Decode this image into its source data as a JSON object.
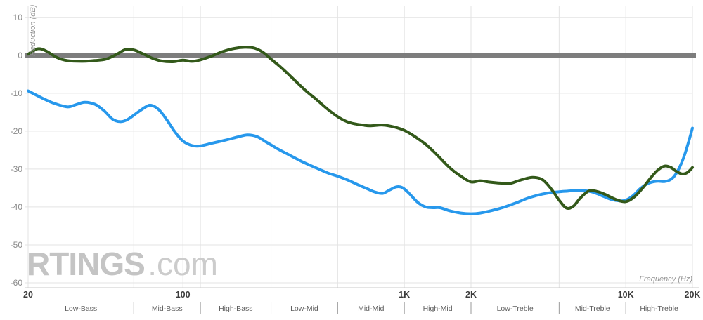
{
  "watermark": {
    "brand": "RTINGS",
    "suffix": ".com"
  },
  "chart_data": {
    "type": "line",
    "x_scale": "log",
    "title": "",
    "xlabel": "Frequency (Hz)",
    "ylabel": "Reduction (dB)",
    "xlim": [
      20,
      20000
    ],
    "ylim": [
      -61.3,
      13.1
    ],
    "grid": true,
    "legend": "none",
    "x_ticks": [
      {
        "value": 20,
        "label": "20"
      },
      {
        "value": 100,
        "label": "100"
      },
      {
        "value": 1000,
        "label": "1K"
      },
      {
        "value": 2000,
        "label": "2K"
      },
      {
        "value": 10000,
        "label": "10K"
      },
      {
        "value": 20000,
        "label": "20K"
      }
    ],
    "y_ticks": [
      {
        "value": 10,
        "label": "10"
      },
      {
        "value": 0,
        "label": "0"
      },
      {
        "value": -10,
        "label": "-10"
      },
      {
        "value": -20,
        "label": "-20"
      },
      {
        "value": -30,
        "label": "-30"
      },
      {
        "value": -40,
        "label": "-40"
      },
      {
        "value": -50,
        "label": "-50"
      },
      {
        "value": -60,
        "label": "-60"
      }
    ],
    "x_gridlines": [
      20,
      60,
      100,
      120,
      250,
      500,
      1000,
      2000,
      5000,
      10000,
      20000
    ],
    "zero_line": {
      "value": 0,
      "color": "#7d7d7d"
    },
    "bands": [
      {
        "label": "Low-Bass",
        "from": 20,
        "to": 60
      },
      {
        "label": "Mid-Bass",
        "from": 60,
        "to": 120
      },
      {
        "label": "High-Bass",
        "from": 120,
        "to": 250
      },
      {
        "label": "Low-Mid",
        "from": 250,
        "to": 500
      },
      {
        "label": "Mid-Mid",
        "from": 500,
        "to": 1000
      },
      {
        "label": "High-Mid",
        "from": 1000,
        "to": 2000
      },
      {
        "label": "Low-Treble",
        "from": 2000,
        "to": 5000
      },
      {
        "label": "Mid-Treble",
        "from": 5000,
        "to": 10000
      },
      {
        "label": "High-Treble",
        "from": 10000,
        "to": 20000
      }
    ],
    "series": [
      {
        "name": "blue",
        "color": "#2798ec",
        "points": [
          [
            20,
            -9.4
          ],
          [
            23,
            -11.2
          ],
          [
            26,
            -12.6
          ],
          [
            30,
            -13.6
          ],
          [
            33,
            -13.0
          ],
          [
            36,
            -12.4
          ],
          [
            40,
            -12.9
          ],
          [
            44,
            -14.6
          ],
          [
            48,
            -16.8
          ],
          [
            52,
            -17.5
          ],
          [
            56,
            -17.0
          ],
          [
            62,
            -15.2
          ],
          [
            68,
            -13.6
          ],
          [
            72,
            -13.2
          ],
          [
            78,
            -14.4
          ],
          [
            85,
            -17.2
          ],
          [
            92,
            -20.2
          ],
          [
            100,
            -22.6
          ],
          [
            110,
            -23.8
          ],
          [
            120,
            -23.9
          ],
          [
            135,
            -23.2
          ],
          [
            155,
            -22.4
          ],
          [
            175,
            -21.6
          ],
          [
            195,
            -21.0
          ],
          [
            215,
            -21.4
          ],
          [
            240,
            -23.0
          ],
          [
            270,
            -24.8
          ],
          [
            300,
            -26.2
          ],
          [
            350,
            -28.2
          ],
          [
            400,
            -29.7
          ],
          [
            450,
            -31.0
          ],
          [
            500,
            -31.9
          ],
          [
            560,
            -33.0
          ],
          [
            620,
            -34.2
          ],
          [
            680,
            -35.2
          ],
          [
            740,
            -36.1
          ],
          [
            800,
            -36.4
          ],
          [
            860,
            -35.5
          ],
          [
            920,
            -34.7
          ],
          [
            980,
            -34.9
          ],
          [
            1050,
            -36.4
          ],
          [
            1150,
            -38.8
          ],
          [
            1250,
            -40.0
          ],
          [
            1350,
            -40.2
          ],
          [
            1450,
            -40.2
          ],
          [
            1600,
            -41.0
          ],
          [
            1800,
            -41.6
          ],
          [
            2000,
            -41.8
          ],
          [
            2200,
            -41.6
          ],
          [
            2500,
            -40.9
          ],
          [
            2800,
            -40.1
          ],
          [
            3200,
            -38.9
          ],
          [
            3600,
            -37.7
          ],
          [
            4000,
            -36.9
          ],
          [
            4500,
            -36.3
          ],
          [
            5000,
            -36.0
          ],
          [
            5500,
            -35.8
          ],
          [
            6000,
            -35.6
          ],
          [
            6500,
            -35.7
          ],
          [
            7000,
            -36.0
          ],
          [
            7500,
            -36.6
          ],
          [
            8000,
            -37.3
          ],
          [
            8700,
            -38.1
          ],
          [
            9400,
            -38.4
          ],
          [
            10000,
            -38.2
          ],
          [
            10800,
            -37.0
          ],
          [
            11600,
            -35.2
          ],
          [
            12400,
            -34.0
          ],
          [
            13200,
            -33.4
          ],
          [
            14000,
            -33.2
          ],
          [
            15000,
            -33.3
          ],
          [
            16000,
            -32.7
          ],
          [
            16800,
            -31.4
          ],
          [
            17600,
            -29.2
          ],
          [
            18400,
            -26.4
          ],
          [
            19200,
            -22.9
          ],
          [
            20000,
            -19.2
          ]
        ]
      },
      {
        "name": "green",
        "color": "#33591a",
        "points": [
          [
            20,
            0.3
          ],
          [
            22,
            1.7
          ],
          [
            24,
            1.2
          ],
          [
            27,
            -0.6
          ],
          [
            30,
            -1.4
          ],
          [
            35,
            -1.6
          ],
          [
            40,
            -1.4
          ],
          [
            45,
            -1.0
          ],
          [
            50,
            0.2
          ],
          [
            55,
            1.5
          ],
          [
            60,
            1.4
          ],
          [
            66,
            0.4
          ],
          [
            73,
            -0.8
          ],
          [
            80,
            -1.5
          ],
          [
            90,
            -1.7
          ],
          [
            100,
            -1.3
          ],
          [
            110,
            -1.6
          ],
          [
            120,
            -1.2
          ],
          [
            135,
            -0.2
          ],
          [
            150,
            0.9
          ],
          [
            170,
            1.8
          ],
          [
            190,
            2.1
          ],
          [
            210,
            1.9
          ],
          [
            230,
            0.8
          ],
          [
            250,
            -1.0
          ],
          [
            280,
            -3.4
          ],
          [
            320,
            -6.6
          ],
          [
            360,
            -9.4
          ],
          [
            400,
            -11.6
          ],
          [
            450,
            -14.2
          ],
          [
            500,
            -16.2
          ],
          [
            550,
            -17.5
          ],
          [
            600,
            -18.1
          ],
          [
            650,
            -18.4
          ],
          [
            700,
            -18.6
          ],
          [
            800,
            -18.4
          ],
          [
            900,
            -18.9
          ],
          [
            1000,
            -19.8
          ],
          [
            1100,
            -21.2
          ],
          [
            1250,
            -23.5
          ],
          [
            1400,
            -26.2
          ],
          [
            1600,
            -29.6
          ],
          [
            1800,
            -31.9
          ],
          [
            2000,
            -33.4
          ],
          [
            2200,
            -33.1
          ],
          [
            2400,
            -33.4
          ],
          [
            2700,
            -33.7
          ],
          [
            3000,
            -33.8
          ],
          [
            3400,
            -32.8
          ],
          [
            3800,
            -32.2
          ],
          [
            4200,
            -32.8
          ],
          [
            4600,
            -35.2
          ],
          [
            5000,
            -38.2
          ],
          [
            5400,
            -40.3
          ],
          [
            5800,
            -39.8
          ],
          [
            6200,
            -37.8
          ],
          [
            6800,
            -35.8
          ],
          [
            7400,
            -35.9
          ],
          [
            8000,
            -36.6
          ],
          [
            9000,
            -38.0
          ],
          [
            10000,
            -38.6
          ],
          [
            11000,
            -37.2
          ],
          [
            12000,
            -34.8
          ],
          [
            13000,
            -32.2
          ],
          [
            14000,
            -30.2
          ],
          [
            15000,
            -29.2
          ],
          [
            16000,
            -29.6
          ],
          [
            17000,
            -30.7
          ],
          [
            18000,
            -31.3
          ],
          [
            19000,
            -30.9
          ],
          [
            20000,
            -29.6
          ]
        ]
      }
    ]
  }
}
